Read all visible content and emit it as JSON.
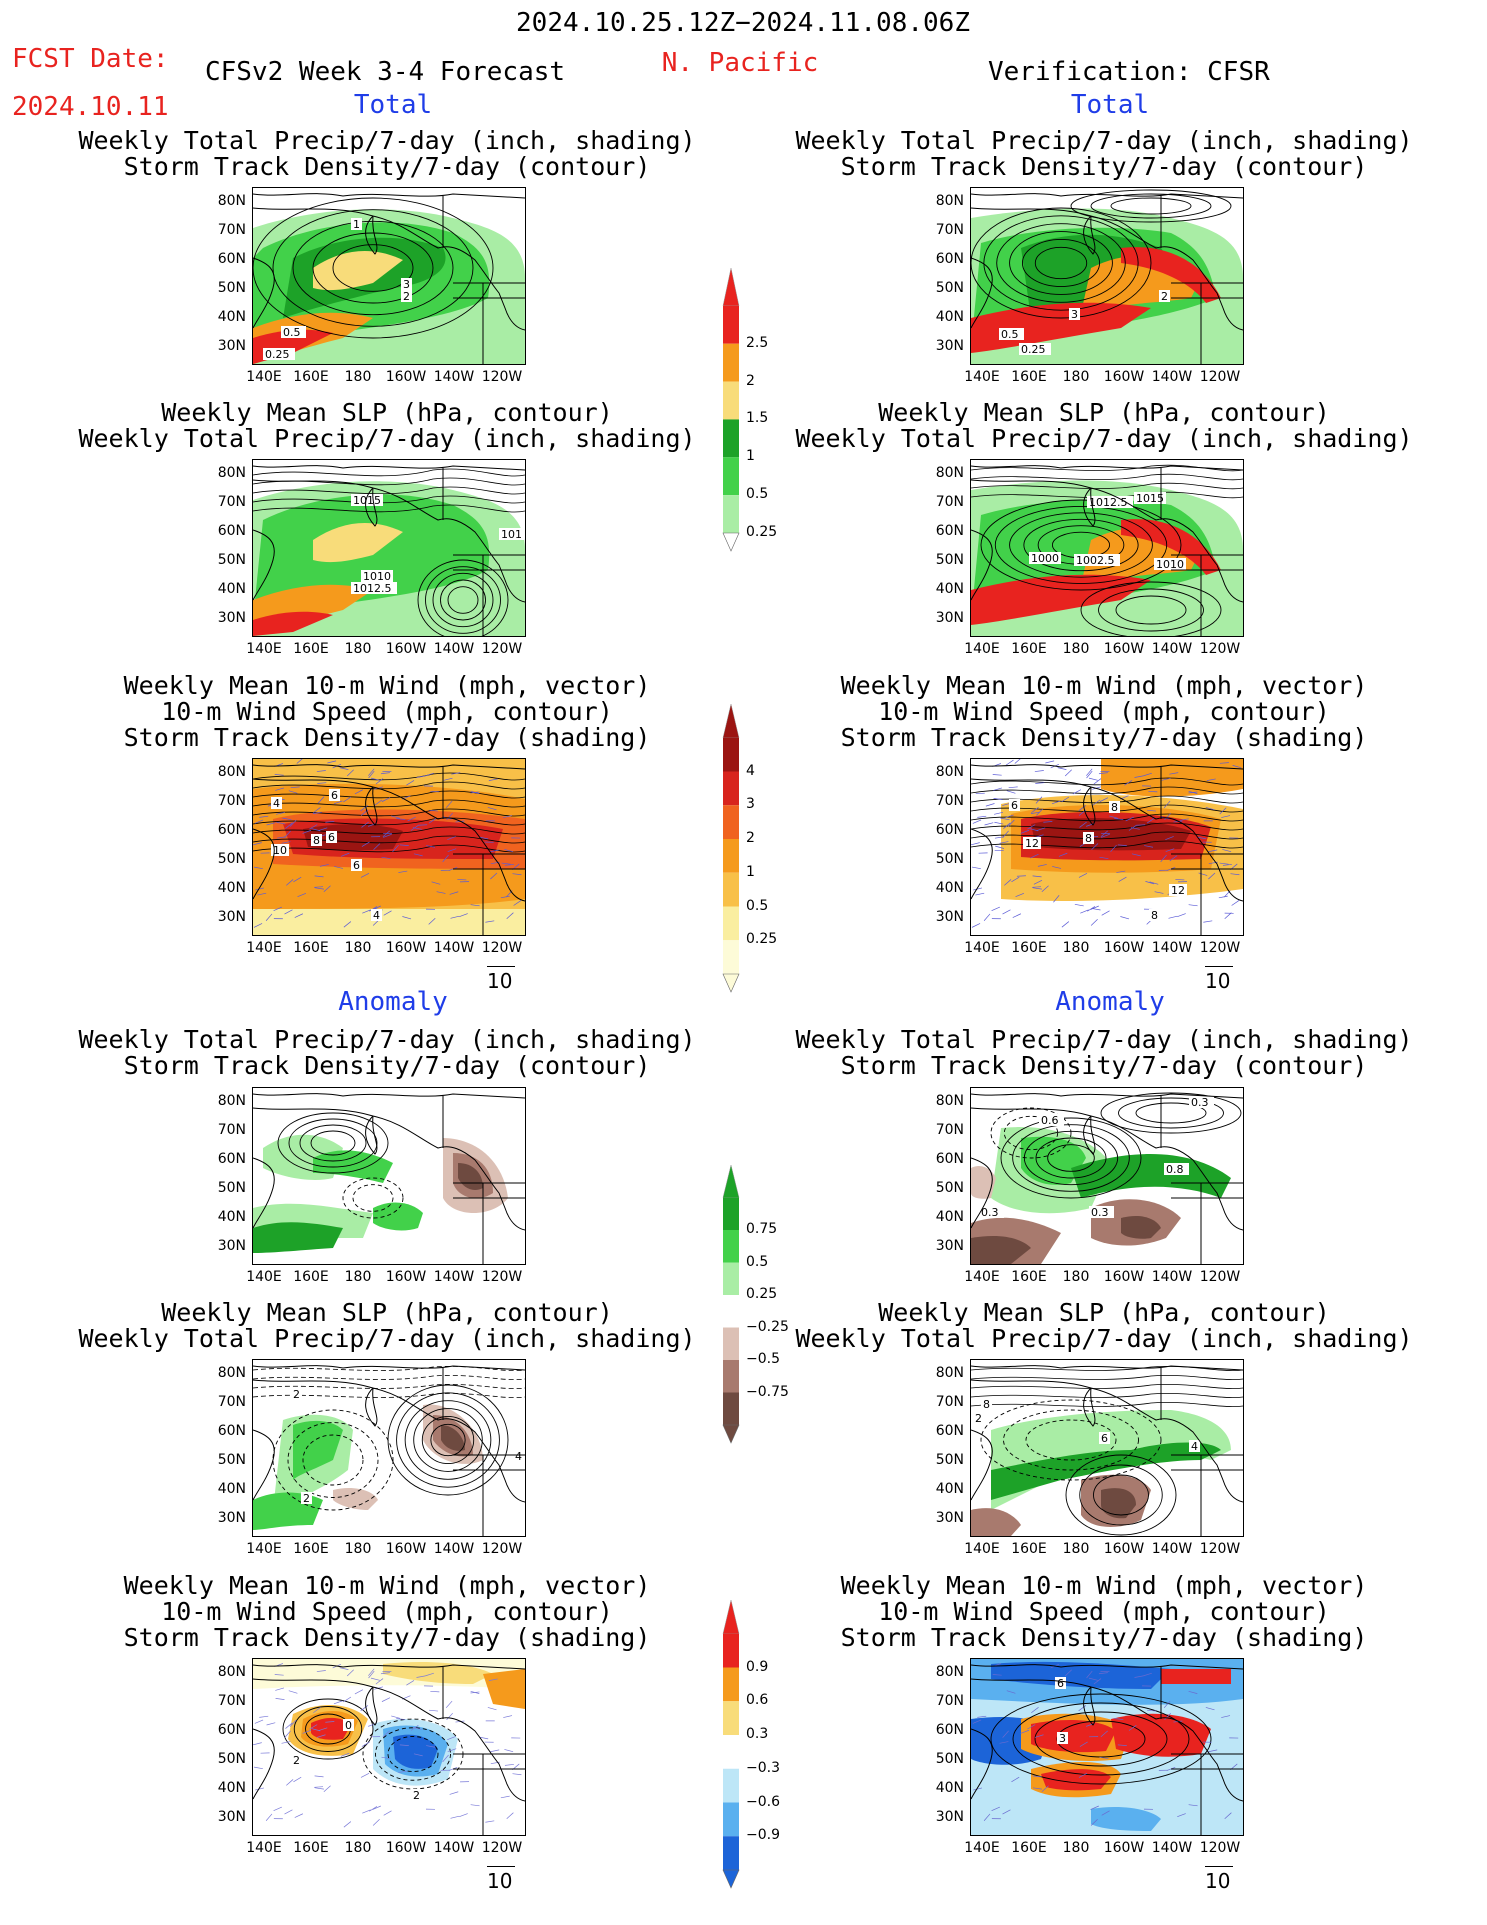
{
  "header": {
    "period": "2024.10.25.12Z−2024.11.08.06Z",
    "fcst_label": "FCST Date:",
    "fcst_date": "2024.10.11",
    "model_title": "CFSv2 Week 3-4 Forecast",
    "region": "N. Pacific",
    "verification": "Verification: CFSR"
  },
  "sections": {
    "total": "Total",
    "anomaly": "Anomaly"
  },
  "titles": {
    "precip_storm": [
      "Weekly Total Precip/7-day (inch, shading)",
      "Storm Track Density/7-day (contour)"
    ],
    "slp_precip": [
      "Weekly Mean SLP (hPa, contour)",
      "Weekly Total Precip/7-day (inch, shading)"
    ],
    "wind_storm": [
      "Weekly Mean 10-m Wind (mph, vector)",
      "10-m Wind Speed (mph, contour)",
      "Storm Track Density/7-day (shading)"
    ]
  },
  "axes": {
    "lat": [
      "80N",
      "70N",
      "60N",
      "50N",
      "40N",
      "30N"
    ],
    "lon": [
      "140E",
      "160E",
      "180",
      "160W",
      "140W",
      "120W"
    ]
  },
  "vector_ref": "10",
  "colorbars": {
    "precip_total": {
      "labels": [
        "2.5",
        "2",
        "1.5",
        "1",
        "0.5",
        "0.25"
      ],
      "colors": [
        "#e8231f",
        "#f59a1c",
        "#f8dc7a",
        "#1da228",
        "#42d14a",
        "#a9eda5"
      ]
    },
    "storm_total": {
      "labels": [
        "4",
        "3",
        "2",
        "1",
        "0.5",
        "0.25"
      ],
      "colors": [
        "#9b1512",
        "#d8241d",
        "#f0631f",
        "#f59a1c",
        "#f8c048",
        "#faeea0",
        "#fdfbd8"
      ]
    },
    "precip_anom": {
      "labels": [
        "0.75",
        "0.5",
        "0.25",
        "−0.25",
        "−0.5",
        "−0.75"
      ],
      "colors": [
        "#1da228",
        "#42d14a",
        "#a9eda5",
        "#ffffff",
        "#dcc0b5",
        "#a87a6e",
        "#6e4a40"
      ]
    },
    "storm_anom": {
      "labels": [
        "0.9",
        "0.6",
        "0.3",
        "−0.3",
        "−0.6",
        "−0.9"
      ],
      "colors": [
        "#e8231f",
        "#f59a1c",
        "#f8dc7a",
        "#ffffff",
        "#bde6f7",
        "#5ab0ef",
        "#1c64d8"
      ]
    }
  },
  "contour_labels": {
    "fc_precip": [
      "1",
      "3",
      "2",
      "0.5",
      "0.25"
    ],
    "obs_precip": [
      "3",
      "2",
      "0.5",
      "0.25"
    ],
    "fc_slp": [
      "1015",
      "1010",
      "1012.5",
      "101"
    ],
    "obs_slp": [
      "1012.5",
      "1015",
      "1000",
      "1002.5",
      "1010"
    ],
    "fc_wind": [
      "6",
      "8",
      "6",
      "10",
      "6",
      "4",
      "4"
    ],
    "obs_wind": [
      "12",
      "8",
      "8",
      "12",
      "8",
      "6"
    ],
    "fc_prec_anom": [],
    "obs_prec_anom": [
      "0.6",
      "0.3",
      "0.8",
      "0.3",
      "0.3"
    ],
    "fc_slp_anom": [
      "2",
      "2",
      "4"
    ],
    "obs_slp_anom": [
      "8",
      "2",
      "6",
      "4"
    ],
    "fc_wind_anom": [
      "0",
      "2",
      "2"
    ],
    "obs_wind_anom": [
      "6",
      "3"
    ]
  }
}
